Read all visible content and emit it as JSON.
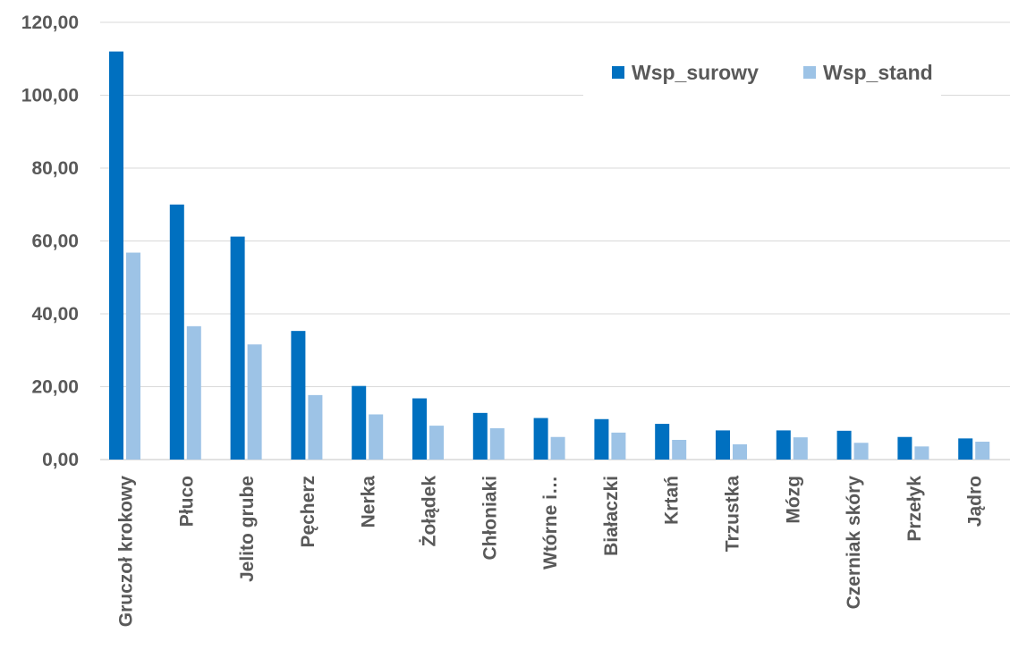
{
  "chart_data": {
    "type": "bar",
    "categories": [
      "Gruczoł krokowy",
      "Płuco",
      "Jelito grube",
      "Pęcherz",
      "Nerka",
      "Żołądek",
      "Chłoniaki",
      "Wtórne i…",
      "Białaczki",
      "Krtań",
      "Trzustka",
      "Mózg",
      "Czerniak skóry",
      "Przełyk",
      "Jądro"
    ],
    "series": [
      {
        "name": "Wsp_surowy",
        "color": "#0070C0",
        "values": [
          112.0,
          70.0,
          61.2,
          35.3,
          20.2,
          16.8,
          12.8,
          11.4,
          11.1,
          9.8,
          8.0,
          8.0,
          7.9,
          6.2,
          5.8
        ]
      },
      {
        "name": "Wsp_stand",
        "color": "#9DC3E6",
        "values": [
          56.8,
          36.6,
          31.6,
          17.7,
          12.4,
          9.3,
          8.6,
          6.2,
          7.4,
          5.4,
          4.2,
          6.1,
          4.6,
          3.6,
          4.9
        ]
      }
    ],
    "yticks": [
      "0,00",
      "20,00",
      "40,00",
      "60,00",
      "80,00",
      "100,00",
      "120,00"
    ],
    "ylim": [
      0,
      120
    ],
    "grid": true,
    "legend_position": "top-right",
    "title": "",
    "xlabel": "",
    "ylabel": ""
  }
}
